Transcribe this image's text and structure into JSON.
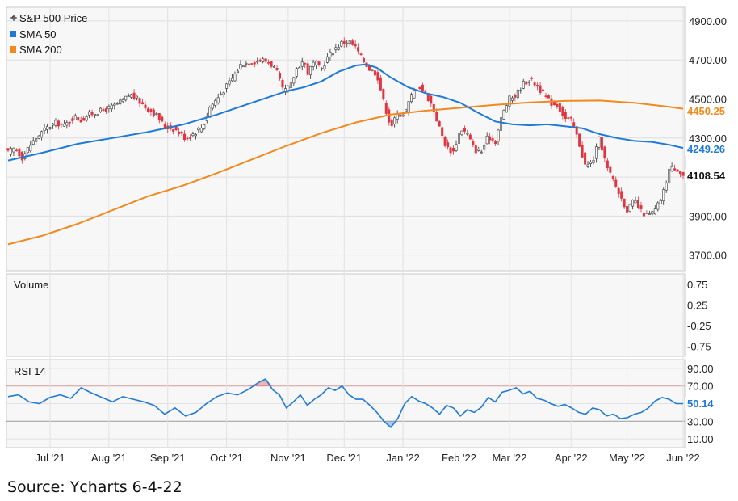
{
  "source_text": "Source: Ycharts 6-4-22",
  "chart_data": {
    "type": "candlestick",
    "price_panel": {
      "legend": [
        {
          "label": "S&P 500 Price",
          "icon": "crosshair-icon"
        },
        {
          "label": "SMA 50",
          "color": "#1f7ad6"
        },
        {
          "label": "SMA 200",
          "color": "#f08a1e"
        }
      ],
      "ylim": [
        3620,
        4970
      ],
      "yticks": [
        "4900.00",
        "4700.00",
        "4500.00",
        "4300.00",
        "4100.00",
        "3900.00",
        "3700.00"
      ],
      "ytick_values": [
        4900,
        4700,
        4500,
        4300,
        4100,
        3900,
        3700
      ],
      "last_price": "4108.54",
      "sma50_last": "4249.26",
      "sma200_last": "4450.25",
      "up_color": "#ffffff",
      "down_color": "#e0343f",
      "price_anchors": [
        [
          0,
          4225
        ],
        [
          2,
          4250
        ],
        [
          4,
          4200
        ],
        [
          6,
          4255
        ],
        [
          8,
          4300
        ],
        [
          11,
          4350
        ],
        [
          14,
          4380
        ],
        [
          16,
          4360
        ],
        [
          19,
          4410
        ],
        [
          21,
          4390
        ],
        [
          23,
          4420
        ],
        [
          25,
          4430
        ],
        [
          28,
          4445
        ],
        [
          30,
          4460
        ],
        [
          33,
          4490
        ],
        [
          35,
          4525
        ],
        [
          37,
          4500
        ],
        [
          40,
          4450
        ],
        [
          42,
          4430
        ],
        [
          45,
          4360
        ],
        [
          48,
          4345
        ],
        [
          51,
          4300
        ],
        [
          53,
          4320
        ],
        [
          56,
          4360
        ],
        [
          58,
          4460
        ],
        [
          60,
          4500
        ],
        [
          63,
          4570
        ],
        [
          65,
          4620
        ],
        [
          67,
          4680
        ],
        [
          70,
          4690
        ],
        [
          73,
          4700
        ],
        [
          75,
          4690
        ],
        [
          77,
          4650
        ],
        [
          79,
          4540
        ],
        [
          81,
          4560
        ],
        [
          83,
          4660
        ],
        [
          85,
          4700
        ],
        [
          86,
          4630
        ],
        [
          88,
          4690
        ],
        [
          90,
          4650
        ],
        [
          92,
          4720
        ],
        [
          94,
          4760
        ],
        [
          96,
          4790
        ],
        [
          98,
          4795
        ],
        [
          100,
          4760
        ],
        [
          102,
          4700
        ],
        [
          104,
          4650
        ],
        [
          106,
          4630
        ],
        [
          108,
          4480
        ],
        [
          110,
          4360
        ],
        [
          112,
          4420
        ],
        [
          114,
          4430
        ],
        [
          116,
          4520
        ],
        [
          118,
          4570
        ],
        [
          120,
          4530
        ],
        [
          122,
          4460
        ],
        [
          124,
          4350
        ],
        [
          126,
          4250
        ],
        [
          128,
          4230
        ],
        [
          130,
          4350
        ],
        [
          132,
          4320
        ],
        [
          134,
          4240
        ],
        [
          136,
          4230
        ],
        [
          138,
          4310
        ],
        [
          140,
          4280
        ],
        [
          142,
          4420
        ],
        [
          144,
          4500
        ],
        [
          146,
          4520
        ],
        [
          148,
          4580
        ],
        [
          150,
          4600
        ],
        [
          152,
          4570
        ],
        [
          154,
          4520
        ],
        [
          156,
          4480
        ],
        [
          158,
          4470
        ],
        [
          160,
          4400
        ],
        [
          162,
          4390
        ],
        [
          164,
          4280
        ],
        [
          166,
          4150
        ],
        [
          168,
          4180
        ],
        [
          170,
          4300
        ],
        [
          172,
          4150
        ],
        [
          174,
          4080
        ],
        [
          176,
          4000
        ],
        [
          178,
          3930
        ],
        [
          180,
          3980
        ],
        [
          182,
          3920
        ],
        [
          184,
          3900
        ],
        [
          186,
          3930
        ],
        [
          188,
          4000
        ],
        [
          190,
          4140
        ],
        [
          192,
          4150
        ],
        [
          194,
          4108
        ]
      ],
      "sma50": [
        [
          0,
          4185
        ],
        [
          10,
          4225
        ],
        [
          20,
          4270
        ],
        [
          30,
          4300
        ],
        [
          40,
          4330
        ],
        [
          50,
          4368
        ],
        [
          60,
          4420
        ],
        [
          70,
          4480
        ],
        [
          80,
          4540
        ],
        [
          85,
          4560
        ],
        [
          90,
          4590
        ],
        [
          95,
          4640
        ],
        [
          100,
          4672
        ],
        [
          103,
          4678
        ],
        [
          106,
          4660
        ],
        [
          110,
          4610
        ],
        [
          115,
          4560
        ],
        [
          120,
          4530
        ],
        [
          125,
          4510
        ],
        [
          130,
          4480
        ],
        [
          135,
          4430
        ],
        [
          140,
          4385
        ],
        [
          145,
          4370
        ],
        [
          150,
          4365
        ],
        [
          155,
          4370
        ],
        [
          160,
          4360
        ],
        [
          165,
          4350
        ],
        [
          170,
          4320
        ],
        [
          175,
          4300
        ],
        [
          180,
          4285
        ],
        [
          185,
          4280
        ],
        [
          190,
          4265
        ],
        [
          194,
          4249
        ]
      ],
      "sma200": [
        [
          0,
          3755
        ],
        [
          10,
          3800
        ],
        [
          20,
          3860
        ],
        [
          30,
          3930
        ],
        [
          40,
          4000
        ],
        [
          50,
          4055
        ],
        [
          60,
          4120
        ],
        [
          70,
          4190
        ],
        [
          80,
          4260
        ],
        [
          90,
          4325
        ],
        [
          100,
          4380
        ],
        [
          110,
          4420
        ],
        [
          120,
          4440
        ],
        [
          130,
          4455
        ],
        [
          140,
          4470
        ],
        [
          150,
          4482
        ],
        [
          160,
          4490
        ],
        [
          170,
          4492
        ],
        [
          180,
          4480
        ],
        [
          185,
          4470
        ],
        [
          190,
          4460
        ],
        [
          194,
          4450
        ]
      ]
    },
    "volume_panel": {
      "label": "Volume",
      "yticks": [
        "0.75",
        "0.25",
        "-0.25",
        "-0.75"
      ],
      "ytick_values": [
        0.75,
        0.25,
        -0.25,
        -0.75
      ],
      "ylim": [
        -1,
        1
      ]
    },
    "rsi_panel": {
      "label": "RSI 14",
      "yticks": [
        "90.00",
        "70.00",
        "50.00",
        "30.00",
        "10.00"
      ],
      "ytick_values": [
        90,
        70,
        50,
        30,
        10
      ],
      "last_value": "50.14",
      "ylim": [
        0,
        100
      ],
      "upper_band": 70,
      "lower_band": 30,
      "values": [
        [
          0,
          58
        ],
        [
          3,
          60
        ],
        [
          6,
          52
        ],
        [
          9,
          50
        ],
        [
          12,
          57
        ],
        [
          15,
          60
        ],
        [
          18,
          56
        ],
        [
          21,
          68
        ],
        [
          24,
          62
        ],
        [
          27,
          57
        ],
        [
          30,
          52
        ],
        [
          33,
          58
        ],
        [
          36,
          55
        ],
        [
          39,
          52
        ],
        [
          42,
          48
        ],
        [
          45,
          38
        ],
        [
          48,
          45
        ],
        [
          51,
          36
        ],
        [
          54,
          40
        ],
        [
          57,
          50
        ],
        [
          60,
          58
        ],
        [
          63,
          62
        ],
        [
          66,
          60
        ],
        [
          69,
          66
        ],
        [
          72,
          74
        ],
        [
          74,
          78
        ],
        [
          76,
          66
        ],
        [
          78,
          60
        ],
        [
          80,
          45
        ],
        [
          82,
          52
        ],
        [
          84,
          60
        ],
        [
          86,
          48
        ],
        [
          88,
          55
        ],
        [
          90,
          60
        ],
        [
          92,
          68
        ],
        [
          94,
          65
        ],
        [
          96,
          70
        ],
        [
          98,
          60
        ],
        [
          100,
          55
        ],
        [
          102,
          55
        ],
        [
          104,
          48
        ],
        [
          106,
          40
        ],
        [
          108,
          30
        ],
        [
          110,
          23
        ],
        [
          112,
          33
        ],
        [
          114,
          50
        ],
        [
          116,
          58
        ],
        [
          118,
          53
        ],
        [
          120,
          50
        ],
        [
          122,
          45
        ],
        [
          124,
          38
        ],
        [
          126,
          48
        ],
        [
          128,
          45
        ],
        [
          130,
          36
        ],
        [
          132,
          43
        ],
        [
          134,
          40
        ],
        [
          136,
          46
        ],
        [
          138,
          57
        ],
        [
          140,
          52
        ],
        [
          142,
          63
        ],
        [
          144,
          65
        ],
        [
          146,
          68
        ],
        [
          148,
          61
        ],
        [
          150,
          64
        ],
        [
          152,
          56
        ],
        [
          154,
          54
        ],
        [
          156,
          50
        ],
        [
          158,
          47
        ],
        [
          160,
          49
        ],
        [
          162,
          45
        ],
        [
          164,
          40
        ],
        [
          166,
          38
        ],
        [
          168,
          45
        ],
        [
          170,
          43
        ],
        [
          172,
          36
        ],
        [
          174,
          38
        ],
        [
          176,
          33
        ],
        [
          178,
          34
        ],
        [
          180,
          38
        ],
        [
          182,
          40
        ],
        [
          184,
          45
        ],
        [
          186,
          53
        ],
        [
          188,
          57
        ],
        [
          190,
          55
        ],
        [
          192,
          50
        ],
        [
          194,
          50
        ]
      ]
    },
    "x_axis": {
      "labels": [
        "Jul '21",
        "Aug '21",
        "Sep '21",
        "Oct '21",
        "Nov '21",
        "Dec '21",
        "Jan '22",
        "Feb '22",
        "Mar '22",
        "Apr '22",
        "May '22",
        "Jun '22"
      ],
      "label_index": [
        15,
        36,
        57,
        78,
        100,
        120,
        141,
        161,
        179,
        201,
        221,
        241
      ],
      "count": 242
    }
  }
}
